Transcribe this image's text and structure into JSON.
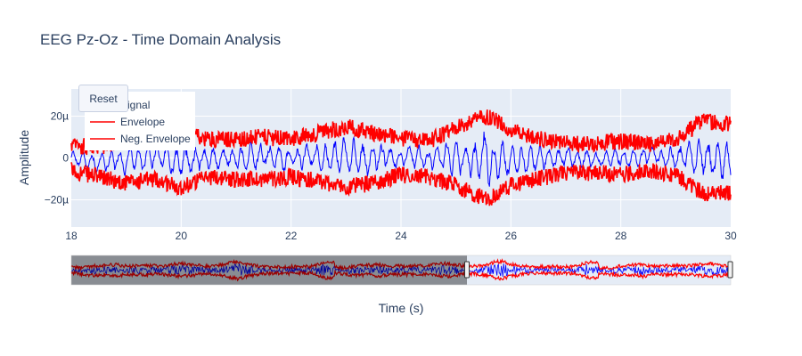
{
  "chart_data": {
    "type": "line",
    "title": "EEG Pz-Oz - Time Domain Analysis",
    "xlabel": "Time (s)",
    "ylabel": "Amplitude",
    "xlim": [
      18,
      30
    ],
    "ylim": [
      -33,
      33
    ],
    "x_ticks": [
      18,
      20,
      22,
      24,
      26,
      28,
      30
    ],
    "x_tick_labels": [
      "18",
      "20",
      "22",
      "24",
      "26",
      "28",
      "30"
    ],
    "y_ticks": [
      -20,
      0,
      20
    ],
    "y_tick_labels": [
      "−20µ",
      "0",
      "20µ"
    ],
    "grid": true,
    "legend_position": "top-left",
    "series": [
      {
        "name": "Signal",
        "color": "#0000ff"
      },
      {
        "name": "Envelope",
        "color": "#ff0000"
      },
      {
        "name": "Neg. Envelope",
        "color": "#ff0000"
      }
    ],
    "envelope_profile": {
      "x": [
        18,
        18.5,
        19,
        19.5,
        20,
        20.5,
        21,
        21.5,
        22,
        22.5,
        23,
        23.5,
        24,
        24.5,
        25,
        25.3,
        25.6,
        26,
        26.5,
        27,
        27.5,
        28,
        28.5,
        29,
        29.5,
        30
      ],
      "upper": [
        6,
        5,
        9,
        11,
        12,
        9,
        9,
        10,
        9,
        12,
        15,
        12,
        9,
        8,
        14,
        18,
        20,
        13,
        9,
        7,
        7,
        8,
        7,
        9,
        18,
        16
      ],
      "lower": [
        -6,
        -9,
        -12,
        -10,
        -14,
        -9,
        -10,
        -10,
        -9,
        -11,
        -14,
        -12,
        -8,
        -9,
        -13,
        -17,
        -20,
        -13,
        -10,
        -7,
        -7,
        -8,
        -6,
        -8,
        -17,
        -17
      ]
    },
    "rangeslider": {
      "range": [
        0,
        30
      ],
      "selected": [
        18,
        30
      ]
    }
  },
  "controls": {
    "reset_label": "Reset"
  }
}
